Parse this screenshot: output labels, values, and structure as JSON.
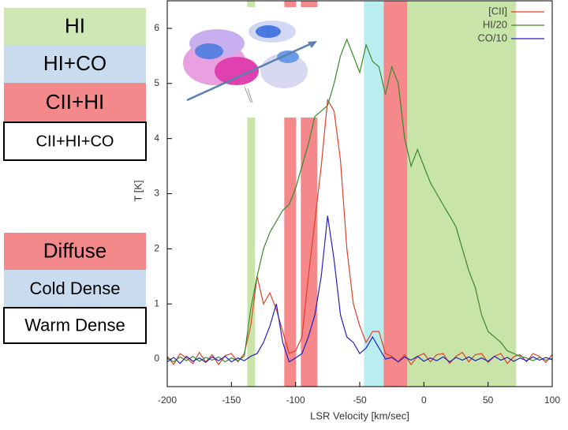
{
  "chart_data": {
    "type": "line",
    "x_label": "LSR Velocity [km/sec]",
    "y_label": "T [K]",
    "xlim": [
      -200,
      100
    ],
    "ylim": [
      -0.5,
      6.5
    ],
    "xticks": [
      -200,
      -150,
      -100,
      -50,
      0,
      50,
      100
    ],
    "yticks": [
      0,
      1,
      2,
      3,
      4,
      5,
      6
    ],
    "grid": false,
    "legend": "top-right",
    "x": [
      -200,
      -195,
      -190,
      -185,
      -180,
      -175,
      -170,
      -165,
      -160,
      -155,
      -150,
      -145,
      -140,
      -135,
      -130,
      -125,
      -120,
      -115,
      -110,
      -105,
      -100,
      -95,
      -90,
      -85,
      -80,
      -75,
      -70,
      -65,
      -60,
      -55,
      -50,
      -45,
      -40,
      -35,
      -30,
      -25,
      -20,
      -15,
      -10,
      -5,
      0,
      5,
      10,
      15,
      20,
      25,
      30,
      35,
      40,
      45,
      50,
      55,
      60,
      65,
      70,
      75,
      80,
      85,
      90,
      95,
      100
    ],
    "series": [
      {
        "name": "[CII]",
        "color": "#e0402a",
        "values": [
          0.05,
          -0.1,
          0.1,
          0.02,
          -0.08,
          0.12,
          -0.05,
          0.08,
          -0.1,
          0.06,
          0.1,
          -0.05,
          0.1,
          0.6,
          1.5,
          1.0,
          1.2,
          0.9,
          0.5,
          0.1,
          0.15,
          0.4,
          1.5,
          2.5,
          3.5,
          4.7,
          4.5,
          3.6,
          2.0,
          1.0,
          0.6,
          0.3,
          0.5,
          0.5,
          0.1,
          0.05,
          -0.05,
          0.08,
          -0.1,
          0.05,
          0.1,
          -0.05,
          0.08,
          0.1,
          -0.08,
          0.05,
          0.12,
          -0.05,
          0.08,
          0.1,
          -0.06,
          0.05,
          0.1,
          -0.08,
          0.04,
          0.08,
          -0.05,
          0.1,
          0.05,
          -0.06,
          0.08
        ]
      },
      {
        "name": "HI/20",
        "color": "#3a8a2a",
        "values": [
          0.02,
          -0.05,
          0.04,
          -0.03,
          0.05,
          -0.04,
          0.03,
          -0.02,
          0.04,
          -0.05,
          0.02,
          -0.03,
          0.05,
          0.9,
          1.5,
          2.0,
          2.3,
          2.5,
          2.7,
          2.8,
          3.1,
          3.5,
          3.9,
          4.4,
          4.5,
          4.6,
          5.0,
          5.5,
          5.8,
          5.5,
          5.2,
          5.7,
          5.4,
          5.3,
          4.8,
          5.3,
          5.0,
          4.0,
          3.5,
          3.8,
          3.5,
          3.2,
          3.0,
          2.8,
          2.6,
          2.4,
          2.0,
          1.6,
          1.3,
          0.8,
          0.5,
          0.4,
          0.3,
          0.15,
          0.1,
          0.05,
          0.02,
          -0.03,
          0.03,
          -0.02,
          0.01
        ]
      },
      {
        "name": "CO/10",
        "color": "#2222c0",
        "values": [
          -0.05,
          0.03,
          -0.08,
          0.05,
          -0.04,
          0.02,
          -0.06,
          0.04,
          -0.03,
          0.05,
          -0.05,
          0.02,
          -0.03,
          0.05,
          0.1,
          0.3,
          0.6,
          1.0,
          0.3,
          -0.05,
          0.02,
          0.1,
          0.4,
          0.8,
          1.5,
          2.6,
          1.8,
          0.8,
          0.4,
          0.3,
          0.1,
          0.2,
          0.4,
          0.2,
          0.0,
          0.03,
          -0.05,
          0.04,
          -0.02,
          0.05,
          -0.04,
          0.02,
          -0.03,
          0.04,
          -0.05,
          0.03,
          -0.02,
          0.04,
          -0.03,
          0.02,
          -0.04,
          0.05,
          -0.02,
          0.03,
          -0.04,
          0.02,
          -0.03,
          0.04,
          -0.02,
          0.03,
          -0.01
        ]
      }
    ],
    "shaded_regions": [
      {
        "from": -137.7,
        "to": -131.5,
        "color": "#c8e4a8"
      },
      {
        "from": -108.8,
        "to": -99.6,
        "color": "#f4888a"
      },
      {
        "from": -95.9,
        "to": -83,
        "color": "#f4888a"
      },
      {
        "from": -46.7,
        "to": -31.3,
        "color": "#b8eef0"
      },
      {
        "from": -31.3,
        "to": -12.9,
        "color": "#f4888a"
      },
      {
        "from": -12.9,
        "to": 71.9,
        "color": "#c8e4a8"
      }
    ],
    "region_labels": [
      {
        "label": "HI",
        "color": "#cfe6b5"
      },
      {
        "label": "HI+CO",
        "color": "#c9dcef"
      },
      {
        "label": "CII+HI",
        "color": "#f4898b"
      },
      {
        "label": "CII+HI+CO",
        "color": "#ffffff"
      }
    ],
    "density_labels": [
      {
        "label": "Diffuse",
        "color": "#f4898b"
      },
      {
        "label": "Cold Dense",
        "color": "#c9dcef"
      },
      {
        "label": "Warm Dense",
        "color": "#ffffff"
      }
    ]
  }
}
